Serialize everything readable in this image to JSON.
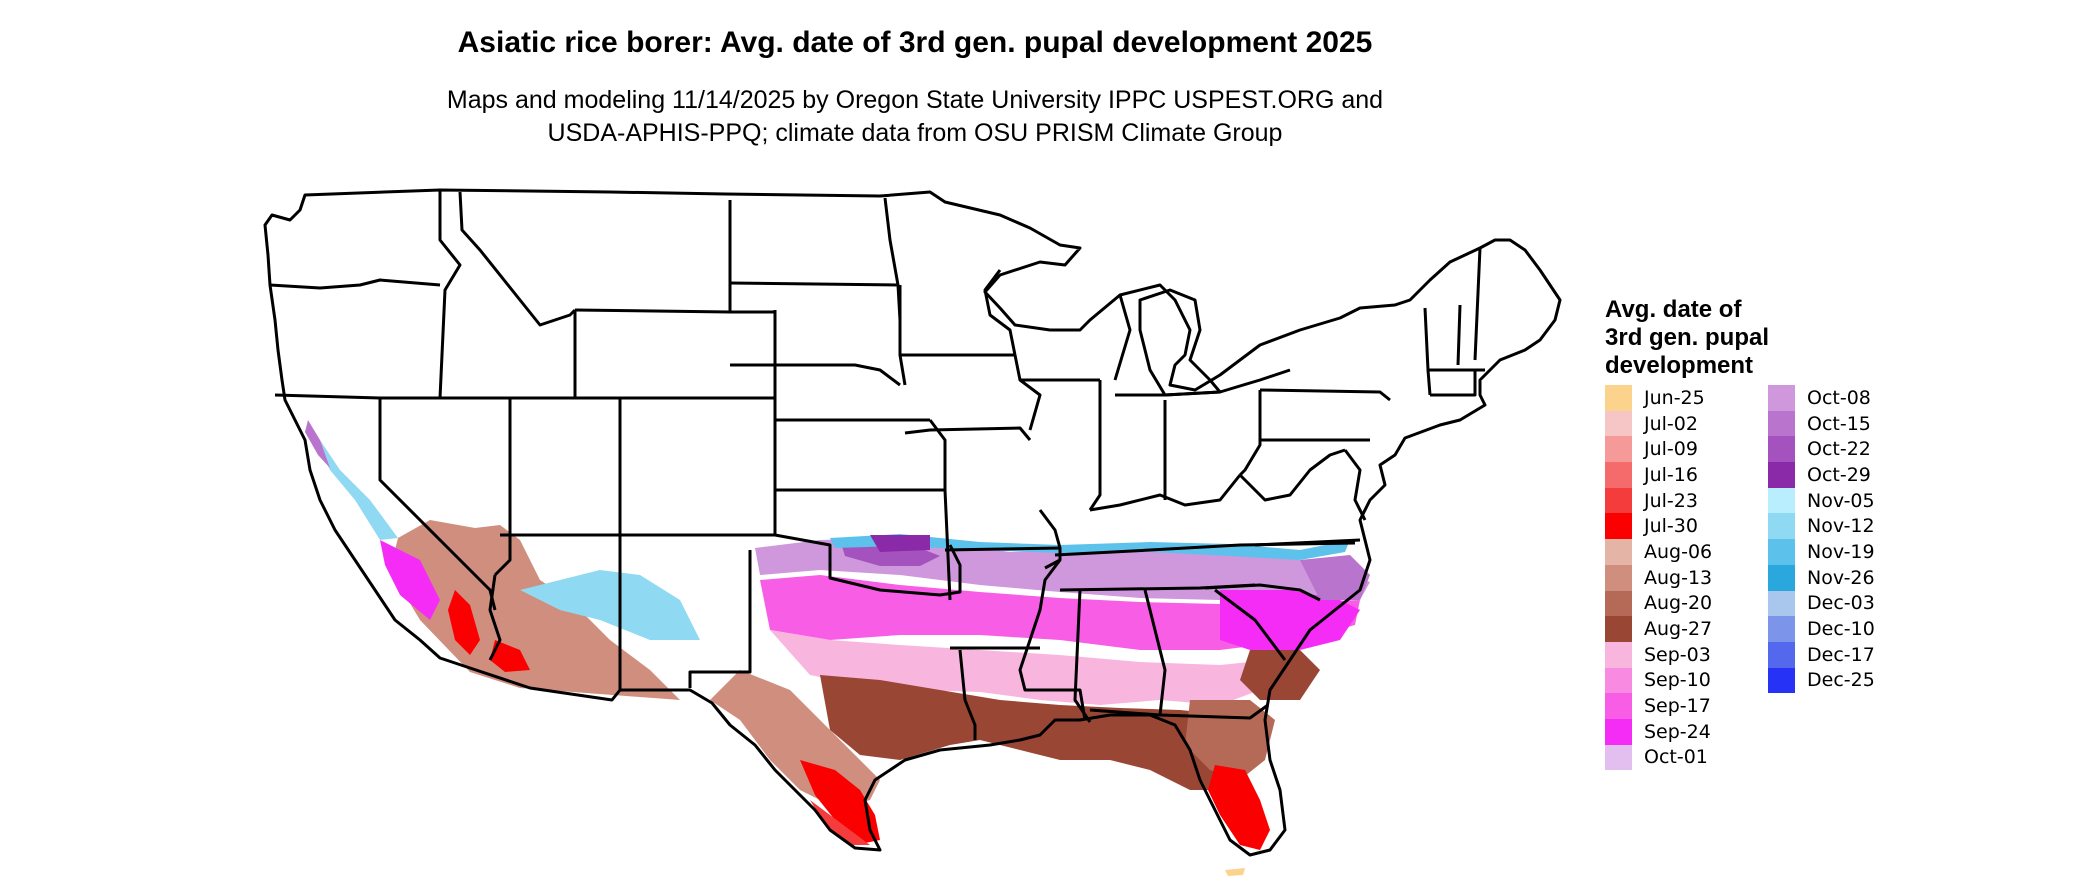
{
  "title": "Asiatic rice borer: Avg. date of 3rd gen. pupal development 2025",
  "subtitle_lines": [
    "Maps and modeling 11/14/2025 by Oregon State University IPPC USPEST.ORG and",
    "USDA-APHIS-PPQ; climate data from OSU PRISM Climate Group"
  ],
  "legend": {
    "title_lines": [
      "Avg. date of",
      "3rd gen. pupal",
      "development"
    ],
    "items": [
      {
        "label": "Jun-25",
        "color": "#fbd38c"
      },
      {
        "label": "Jul-02",
        "color": "#f6c5c6"
      },
      {
        "label": "Jul-09",
        "color": "#f59999"
      },
      {
        "label": "Jul-16",
        "color": "#f56b6b"
      },
      {
        "label": "Jul-23",
        "color": "#f53c3c"
      },
      {
        "label": "Jul-30",
        "color": "#fa0000"
      },
      {
        "label": "Aug-06",
        "color": "#e4b5a6"
      },
      {
        "label": "Aug-13",
        "color": "#cf8e7e"
      },
      {
        "label": "Aug-20",
        "color": "#b56a58"
      },
      {
        "label": "Aug-27",
        "color": "#9a4634"
      },
      {
        "label": "Sep-03",
        "color": "#f8b6df"
      },
      {
        "label": "Sep-10",
        "color": "#f98ae1"
      },
      {
        "label": "Sep-17",
        "color": "#f85de6"
      },
      {
        "label": "Sep-24",
        "color": "#f52cf5"
      },
      {
        "label": "Oct-01",
        "color": "#e3bff0"
      },
      {
        "label": "Oct-08",
        "color": "#cf97dc"
      },
      {
        "label": "Oct-15",
        "color": "#b974ce"
      },
      {
        "label": "Oct-22",
        "color": "#a453be"
      },
      {
        "label": "Oct-29",
        "color": "#8a2aa8"
      },
      {
        "label": "Nov-05",
        "color": "#b8eefd"
      },
      {
        "label": "Nov-12",
        "color": "#8fdaf2"
      },
      {
        "label": "Nov-19",
        "color": "#5cc2ec"
      },
      {
        "label": "Nov-26",
        "color": "#2aa7dc"
      },
      {
        "label": "Dec-03",
        "color": "#a9c6ec"
      },
      {
        "label": "Dec-10",
        "color": "#7c94ea"
      },
      {
        "label": "Dec-17",
        "color": "#5468ee"
      },
      {
        "label": "Dec-25",
        "color": "#2633f7"
      }
    ]
  }
}
